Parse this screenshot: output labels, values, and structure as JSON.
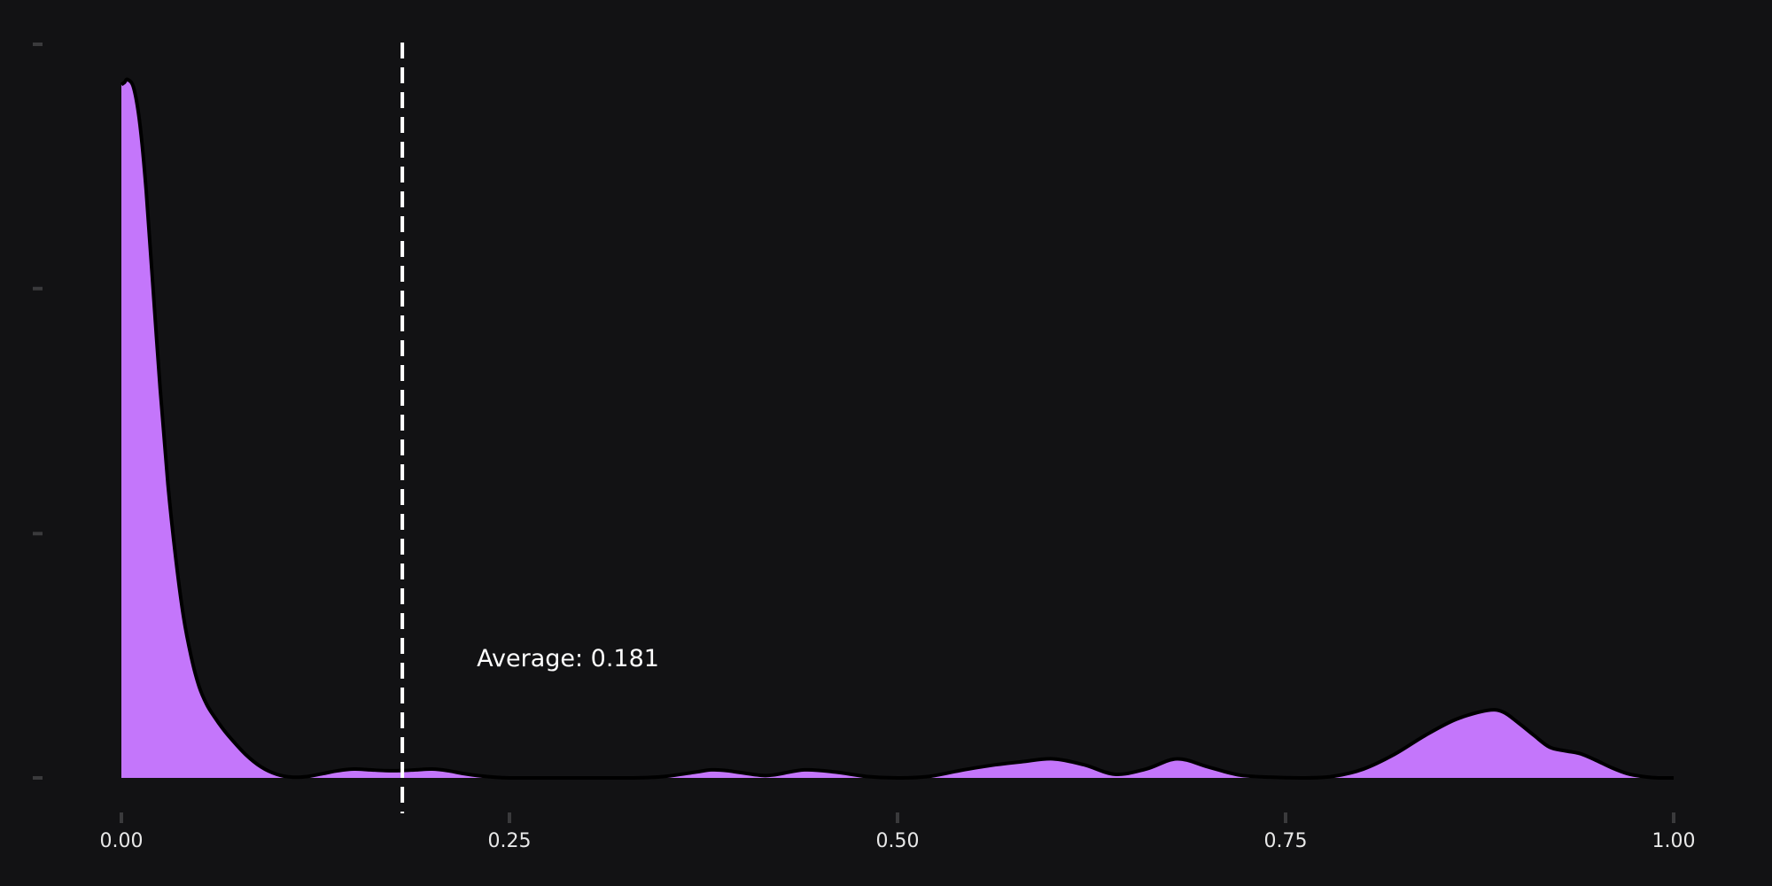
{
  "chart_data": {
    "type": "area",
    "title": "",
    "xlabel": "",
    "ylabel": "",
    "xlim": [
      0,
      1
    ],
    "ylim": [
      0,
      1
    ],
    "x_ticks": [
      "0.00",
      "0.25",
      "0.50",
      "0.75",
      "1.00"
    ],
    "x_tick_values": [
      0,
      0.25,
      0.5,
      0.75,
      1.0
    ],
    "y_tick_values": [
      0,
      0.333,
      0.667,
      1.0
    ],
    "y_tick_labels_shown": false,
    "grid": false,
    "legend": "none",
    "series": [
      {
        "x": [
          0,
          0.002,
          0.004,
          0.008,
          0.012,
          0.016,
          0.02,
          0.025,
          0.03,
          0.035,
          0.04,
          0.045,
          0.05,
          0.055,
          0.06,
          0.065,
          0.07,
          0.08,
          0.09,
          0.1,
          0.11,
          0.12,
          0.13,
          0.14,
          0.15,
          0.16,
          0.17,
          0.18,
          0.19,
          0.2,
          0.21,
          0.22,
          0.23,
          0.24,
          0.25,
          0.27,
          0.3,
          0.33,
          0.35,
          0.37,
          0.38,
          0.39,
          0.41,
          0.42,
          0.44,
          0.46,
          0.48,
          0.5,
          0.52,
          0.54,
          0.56,
          0.58,
          0.6,
          0.62,
          0.64,
          0.66,
          0.68,
          0.7,
          0.72,
          0.74,
          0.76,
          0.78,
          0.8,
          0.82,
          0.84,
          0.86,
          0.88,
          0.89,
          0.9,
          0.91,
          0.92,
          0.93,
          0.94,
          0.95,
          0.96,
          0.97,
          0.98,
          0.99,
          1.0
        ],
        "y": [
          0.945,
          0.948,
          0.952,
          0.94,
          0.89,
          0.8,
          0.68,
          0.53,
          0.4,
          0.3,
          0.22,
          0.165,
          0.125,
          0.1,
          0.083,
          0.068,
          0.055,
          0.032,
          0.015,
          0.005,
          0.001,
          0.002,
          0.006,
          0.01,
          0.012,
          0.011,
          0.01,
          0.01,
          0.011,
          0.012,
          0.01,
          0.006,
          0.003,
          0.001,
          0.0,
          0.0,
          0.0,
          0.0,
          0.002,
          0.008,
          0.011,
          0.01,
          0.004,
          0.004,
          0.011,
          0.008,
          0.002,
          0.0,
          0.002,
          0.01,
          0.017,
          0.022,
          0.026,
          0.018,
          0.005,
          0.012,
          0.026,
          0.015,
          0.004,
          0.001,
          0.0,
          0.002,
          0.012,
          0.032,
          0.058,
          0.08,
          0.092,
          0.09,
          0.075,
          0.058,
          0.042,
          0.037,
          0.033,
          0.024,
          0.014,
          0.006,
          0.002,
          0.0,
          0.0
        ],
        "color": "#c476fb"
      }
    ],
    "annotations": [
      {
        "type": "vline",
        "x": 0.181,
        "style": "dashed",
        "color": "#ffffff",
        "label": "Average: 0.181"
      }
    ],
    "colors": {
      "background": "#121214",
      "fill": "#c476fb",
      "outline": "#000000",
      "tick": "#3a3a3c",
      "text": "#e8e8e8"
    }
  }
}
